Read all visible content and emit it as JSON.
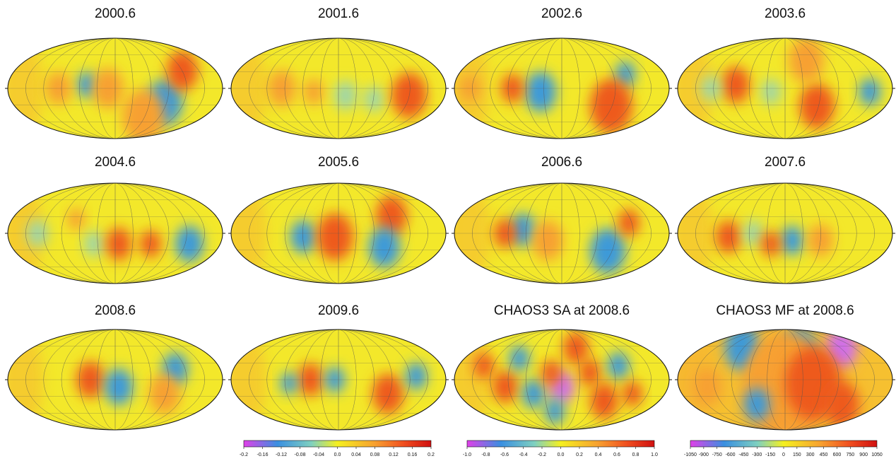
{
  "panels": [
    {
      "title": "2000.6"
    },
    {
      "title": "2001.6"
    },
    {
      "title": "2002.6"
    },
    {
      "title": "2003.6"
    },
    {
      "title": "2004.6"
    },
    {
      "title": "2005.6"
    },
    {
      "title": "2006.6"
    },
    {
      "title": "2007.6"
    },
    {
      "title": "2008.6"
    },
    {
      "title": "2009.6"
    },
    {
      "title": "CHAOS3 SA at 2008.6"
    },
    {
      "title": "CHAOS3 MF at 2008.6"
    }
  ],
  "colorbars": [
    {
      "ticks": [
        "-0.2",
        "-0.16",
        "-0.12",
        "-0.08",
        "-0.04",
        "0.0",
        "0.04",
        "0.08",
        "0.12",
        "0.16",
        "0.2"
      ]
    },
    {
      "ticks": [
        "-1.0",
        "-0.8",
        "-0.6",
        "-0.4",
        "-0.2",
        "0.0",
        "0.2",
        "0.4",
        "0.6",
        "0.8",
        "1.0"
      ]
    },
    {
      "ticks": [
        "-1050",
        "-900",
        "-750",
        "-600",
        "-450",
        "-300",
        "-150",
        "0",
        "150",
        "300",
        "450",
        "600",
        "750",
        "900",
        "1050"
      ]
    }
  ]
}
